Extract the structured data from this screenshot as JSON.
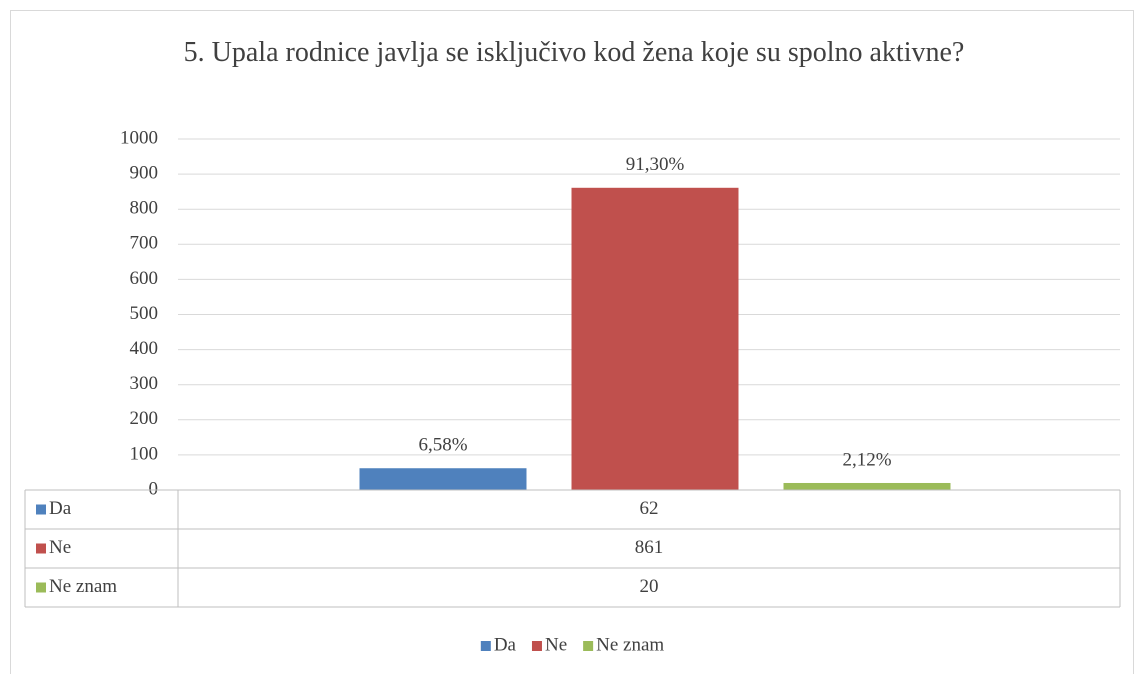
{
  "chart_data": {
    "type": "bar",
    "title": "5. Upala rodnice javlja se isključivo kod žena koje su spolno aktivne?",
    "categories": [
      null
    ],
    "series": [
      {
        "name": "Da",
        "color": "#4f81bd",
        "values": [
          62
        ],
        "percent_labels": [
          "6,58%"
        ]
      },
      {
        "name": "Ne",
        "color": "#c0504d",
        "values": [
          861
        ],
        "percent_labels": [
          "91,30%"
        ]
      },
      {
        "name": "Ne znam",
        "color": "#9bbb59",
        "values": [
          20
        ],
        "percent_labels": [
          "2,12%"
        ]
      }
    ],
    "ylim": [
      0,
      1000
    ],
    "yticks": [
      0,
      100,
      200,
      300,
      400,
      500,
      600,
      700,
      800,
      900,
      1000
    ],
    "grid": true,
    "legend": "bottom",
    "data_table": true
  }
}
